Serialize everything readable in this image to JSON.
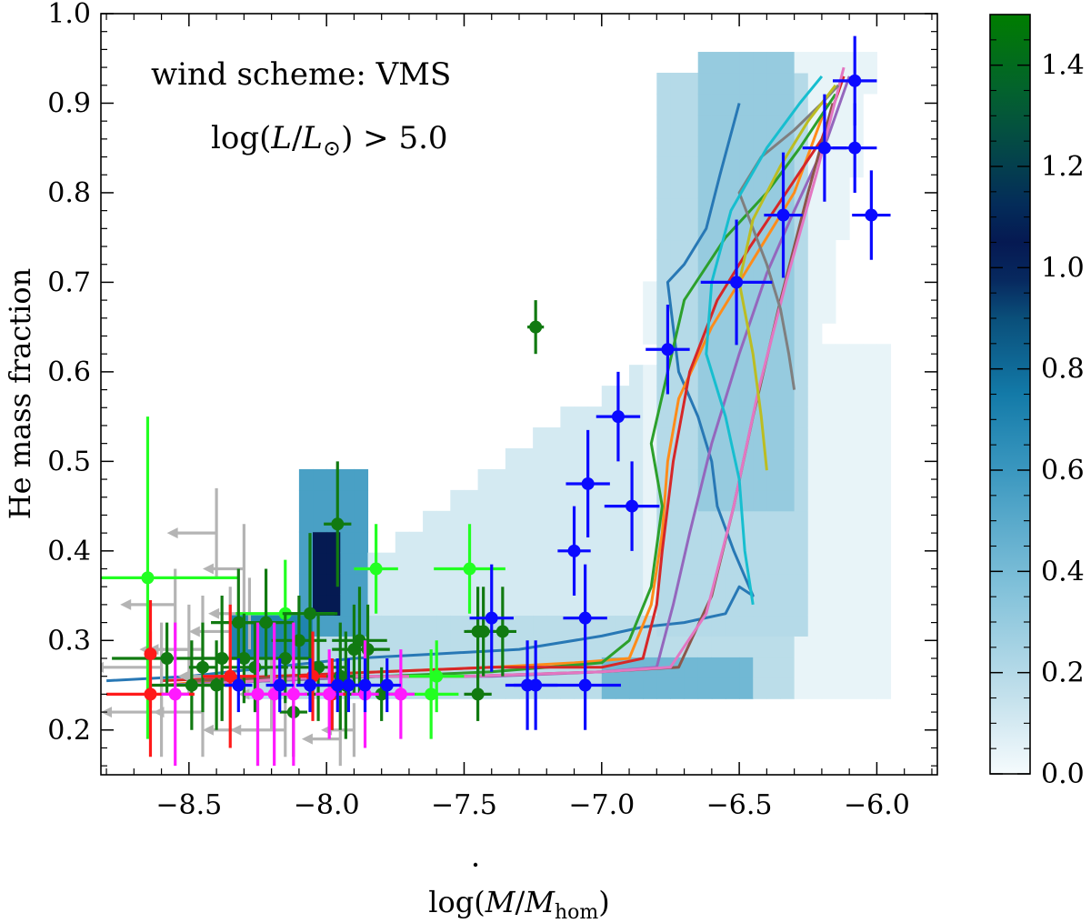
{
  "chart_data": {
    "type": "scatter",
    "title": "",
    "xlabel_parts": {
      "prefix": "log(",
      "mdot": "M",
      "slash": "/",
      "m": "M",
      "sub": "hom",
      "suffix": ")"
    },
    "ylabel": "He mass fraction",
    "xlim": [
      -8.82,
      -5.78
    ],
    "ylim": [
      0.15,
      1.0
    ],
    "x_ticks": [
      -8.5,
      -8.0,
      -7.5,
      -7.0,
      -6.5,
      -6.0
    ],
    "x_tick_labels": [
      "−8.5",
      "−8.0",
      "−7.5",
      "−7.0",
      "−6.5",
      "−6.0"
    ],
    "y_ticks": [
      0.2,
      0.3,
      0.4,
      0.5,
      0.6,
      0.7,
      0.8,
      0.9,
      1.0
    ],
    "y_tick_labels": [
      "0.2",
      "0.3",
      "0.4",
      "0.5",
      "0.6",
      "0.7",
      "0.8",
      "0.9",
      "1.0"
    ],
    "annotations": {
      "wind_scheme": "wind scheme: VMS",
      "lum_prefix": "log(",
      "lum_L": "L",
      "lum_slash": "/",
      "lum_Lsun": "L",
      "lum_sun_sub": "⊙",
      "lum_suffix": ") > 5.0"
    },
    "colorbar": {
      "range": [
        0.0,
        1.5
      ],
      "ticks": [
        0.0,
        0.2,
        0.4,
        0.6,
        0.8,
        1.0,
        1.2,
        1.4
      ],
      "tick_labels": [
        "0.0",
        "0.2",
        "0.4",
        "0.6",
        "0.8",
        "1.0",
        "1.2",
        "1.4"
      ],
      "colors": [
        "#f5fbfd",
        "#c4e1ec",
        "#7fc0d9",
        "#3a97bf",
        "#137aa8",
        "#0a4f7a",
        "#05124f",
        "#04305a",
        "#045c36",
        "#007d00"
      ]
    },
    "heatmap": {
      "x_edges_start": -8.4,
      "y_edges_start": 0.235,
      "dx": 0.05,
      "dy": 0.0233,
      "regions": [
        {
          "x": [
            -8.3,
            -5.95
          ],
          "y": [
            0.235,
            0.96
          ],
          "density": 0.04
        },
        {
          "x": [
            -8.2,
            -6.85
          ],
          "y": [
            0.24,
            0.62
          ],
          "density": 0.1
        },
        {
          "x": [
            -8.3,
            -6.3
          ],
          "y": [
            0.24,
            0.33
          ],
          "density": 0.18
        },
        {
          "x": [
            -6.8,
            -6.25
          ],
          "y": [
            0.3,
            0.94
          ],
          "density": 0.2
        },
        {
          "x": [
            -6.65,
            -6.3
          ],
          "y": [
            0.45,
            0.95
          ],
          "density": 0.3
        },
        {
          "x": [
            -8.1,
            -7.85
          ],
          "y": [
            0.3,
            0.48
          ],
          "density": 0.55
        },
        {
          "x": [
            -8.05,
            -7.95
          ],
          "y": [
            0.33,
            0.41
          ],
          "density": 1.05
        },
        {
          "x": [
            -7.0,
            -6.45
          ],
          "y": [
            0.24,
            0.29
          ],
          "density": 0.42
        },
        {
          "x": [
            -8.35,
            -8.05
          ],
          "y": [
            0.27,
            0.32
          ],
          "density": 0.7
        }
      ]
    },
    "series": [
      {
        "name": "gray upper limits",
        "color": "#b4b4b4",
        "points": [
          [
            -8.4,
            0.42
          ],
          [
            -8.55,
            0.34
          ],
          [
            -8.3,
            0.38
          ],
          [
            -8.45,
            0.29
          ],
          [
            -8.6,
            0.27
          ],
          [
            -8.35,
            0.31
          ],
          [
            -8.2,
            0.24
          ],
          [
            -8.25,
            0.2
          ],
          [
            -7.9,
            0.2
          ],
          [
            -7.95,
            0.19
          ],
          [
            -8.45,
            0.22
          ],
          [
            -8.6,
            0.22
          ],
          [
            -8.38,
            0.26
          ],
          [
            -8.15,
            0.2
          ],
          [
            -8.28,
            0.33
          ],
          [
            -8.5,
            0.29
          ]
        ],
        "yerr": [
          0.05,
          0.04,
          0.05,
          0.06,
          0.05,
          0.05,
          0.04,
          0.04,
          0.03,
          0.03,
          0.05,
          0.05,
          0.05,
          0.03,
          0.04,
          0.05
        ],
        "arrow_dx": [
          -0.18,
          -0.2,
          -0.15,
          -0.2,
          -0.25,
          -0.15,
          -0.12,
          -0.2,
          -0.12,
          -0.14,
          -0.18,
          -0.22,
          -0.16,
          -0.2,
          -0.15,
          -0.18
        ]
      },
      {
        "name": "bright green",
        "color": "#22ff22",
        "points": [
          [
            -8.65,
            0.37
          ],
          [
            -8.15,
            0.33
          ],
          [
            -7.82,
            0.38
          ],
          [
            -7.48,
            0.38
          ],
          [
            -7.62,
            0.24
          ],
          [
            -7.6,
            0.26
          ]
        ],
        "xerr": [
          0.33,
          0.18,
          0.08,
          0.13,
          0.1,
          0.1
        ],
        "yerr": [
          0.18,
          0.06,
          0.05,
          0.05,
          0.05,
          0.04
        ]
      },
      {
        "name": "dark green",
        "color": "#117a11",
        "points": [
          [
            -8.58,
            0.28
          ],
          [
            -8.49,
            0.25
          ],
          [
            -8.38,
            0.28
          ],
          [
            -8.32,
            0.32
          ],
          [
            -8.26,
            0.27
          ],
          [
            -8.22,
            0.32
          ],
          [
            -8.15,
            0.28
          ],
          [
            -8.1,
            0.3
          ],
          [
            -8.06,
            0.33
          ],
          [
            -8.03,
            0.27
          ],
          [
            -7.98,
            0.24
          ],
          [
            -7.96,
            0.43
          ],
          [
            -7.93,
            0.25
          ],
          [
            -7.9,
            0.29
          ],
          [
            -7.88,
            0.3
          ],
          [
            -7.85,
            0.29
          ],
          [
            -7.8,
            0.24
          ],
          [
            -7.43,
            0.31
          ],
          [
            -7.45,
            0.31
          ],
          [
            -7.36,
            0.31
          ],
          [
            -7.24,
            0.65
          ],
          [
            -7.45,
            0.24
          ],
          [
            -8.3,
            0.28
          ],
          [
            -8.12,
            0.22
          ],
          [
            -7.95,
            0.26
          ],
          [
            -8.4,
            0.25
          ],
          [
            -8.45,
            0.27
          ]
        ],
        "xerr": [
          0.2,
          0.15,
          0.1,
          0.1,
          0.12,
          0.1,
          0.1,
          0.1,
          0.1,
          0.1,
          0.1,
          0.05,
          0.1,
          0.08,
          0.1,
          0.08,
          0.05,
          0.06,
          0.05,
          0.05,
          0.03,
          0.05,
          0.05,
          0.05,
          0.05,
          0.05,
          0.05
        ],
        "yerr": [
          0.04,
          0.05,
          0.07,
          0.06,
          0.05,
          0.06,
          0.05,
          0.05,
          0.09,
          0.06,
          0.04,
          0.07,
          0.06,
          0.05,
          0.06,
          0.05,
          0.03,
          0.05,
          0.05,
          0.05,
          0.03,
          0.03,
          0.05,
          0.05,
          0.06,
          0.05,
          0.05
        ]
      },
      {
        "name": "red",
        "color": "#ff1a1a",
        "points": [
          [
            -8.64,
            0.24
          ],
          [
            -8.64,
            0.285
          ],
          [
            -8.35,
            0.26
          ],
          [
            -8.05,
            0.26
          ],
          [
            -7.98,
            0.24
          ]
        ],
        "xerr": [
          0.16,
          0.0,
          0.1,
          0.05,
          0.05
        ],
        "yerr": [
          0.07,
          0.06,
          0.08,
          0.05,
          0.04
        ]
      },
      {
        "name": "magenta",
        "color": "#ff1aff",
        "points": [
          [
            -8.55,
            0.24
          ],
          [
            -8.25,
            0.24
          ],
          [
            -8.19,
            0.24
          ],
          [
            -8.12,
            0.24
          ],
          [
            -7.99,
            0.24
          ],
          [
            -7.86,
            0.24
          ],
          [
            -7.73,
            0.24
          ]
        ],
        "xerr": [
          0.05,
          0.05,
          0.05,
          0.05,
          0.05,
          0.05,
          0.05
        ],
        "yerr": [
          0.08,
          0.08,
          0.08,
          0.08,
          0.05,
          0.06,
          0.05
        ]
      },
      {
        "name": "blue",
        "color": "#0a0aff",
        "points": [
          [
            -6.08,
            0.925
          ],
          [
            -6.19,
            0.85
          ],
          [
            -6.08,
            0.85
          ],
          [
            -6.34,
            0.775
          ],
          [
            -6.02,
            0.775
          ],
          [
            -6.51,
            0.7
          ],
          [
            -6.76,
            0.625
          ],
          [
            -6.94,
            0.55
          ],
          [
            -7.05,
            0.475
          ],
          [
            -6.89,
            0.45
          ],
          [
            -7.1,
            0.4
          ],
          [
            -7.06,
            0.325
          ],
          [
            -7.4,
            0.325
          ],
          [
            -7.24,
            0.25
          ],
          [
            -7.27,
            0.25
          ],
          [
            -7.06,
            0.25
          ],
          [
            -8.32,
            0.25
          ],
          [
            -8.17,
            0.25
          ],
          [
            -8.06,
            0.25
          ],
          [
            -7.92,
            0.25
          ],
          [
            -7.86,
            0.25
          ],
          [
            -7.78,
            0.25
          ],
          [
            -7.96,
            0.25
          ]
        ],
        "xerr": [
          0.08,
          0.08,
          0.08,
          0.07,
          0.07,
          0.13,
          0.08,
          0.08,
          0.08,
          0.1,
          0.06,
          0.08,
          0.08,
          0.08,
          0.08,
          0.13,
          0.05,
          0.05,
          0.05,
          0.05,
          0.05,
          0.05,
          0.05
        ],
        "yerr": [
          0.05,
          0.06,
          0.05,
          0.07,
          0.05,
          0.07,
          0.05,
          0.05,
          0.06,
          0.05,
          0.05,
          0.06,
          0.06,
          0.05,
          0.05,
          0.05,
          0.03,
          0.03,
          0.03,
          0.03,
          0.03,
          0.03,
          0.03
        ]
      }
    ],
    "tracks": [
      {
        "color": "#2878b5",
        "x": [
          -8.8,
          -8.5,
          -8.2,
          -7.9,
          -7.6,
          -7.3,
          -7.0,
          -6.85,
          -6.7,
          -6.55,
          -6.5,
          -6.45,
          -6.52,
          -6.58,
          -6.6,
          -6.65,
          -6.72,
          -6.76,
          -6.7,
          -6.62,
          -6.57,
          -6.5
        ],
        "y": [
          0.255,
          0.26,
          0.27,
          0.28,
          0.285,
          0.29,
          0.305,
          0.315,
          0.32,
          0.33,
          0.36,
          0.35,
          0.4,
          0.45,
          0.5,
          0.55,
          0.6,
          0.7,
          0.72,
          0.76,
          0.82,
          0.9
        ]
      },
      {
        "color": "#ff8c1a",
        "x": [
          -8.6,
          -8.2,
          -7.8,
          -7.4,
          -7.1,
          -6.9,
          -6.82,
          -6.78,
          -6.76,
          -6.72,
          -6.6,
          -6.5,
          -6.4,
          -6.3,
          -6.18
        ],
        "y": [
          0.25,
          0.26,
          0.265,
          0.27,
          0.275,
          0.28,
          0.34,
          0.42,
          0.5,
          0.57,
          0.65,
          0.7,
          0.75,
          0.8,
          0.9
        ]
      },
      {
        "color": "#2ca02c",
        "x": [
          -8.6,
          -8.2,
          -7.8,
          -7.4,
          -7.0,
          -6.9,
          -6.82,
          -6.78,
          -6.82,
          -6.76,
          -6.7,
          -6.55,
          -6.4,
          -6.28,
          -6.15
        ],
        "y": [
          0.25,
          0.255,
          0.26,
          0.265,
          0.275,
          0.3,
          0.36,
          0.45,
          0.52,
          0.6,
          0.68,
          0.75,
          0.8,
          0.85,
          0.91
        ]
      },
      {
        "color": "#d62728",
        "x": [
          -8.6,
          -8.2,
          -7.8,
          -7.4,
          -7.0,
          -6.85,
          -6.8,
          -6.78,
          -6.74,
          -6.68,
          -6.58,
          -6.46,
          -6.33,
          -6.2,
          -6.12
        ],
        "y": [
          0.255,
          0.26,
          0.265,
          0.27,
          0.27,
          0.28,
          0.34,
          0.4,
          0.5,
          0.6,
          0.68,
          0.74,
          0.8,
          0.86,
          0.93
        ]
      },
      {
        "color": "#9467bd",
        "x": [
          -8.6,
          -8.2,
          -7.8,
          -7.4,
          -7.0,
          -6.8,
          -6.74,
          -6.68,
          -6.6,
          -6.5,
          -6.4,
          -6.3,
          -6.18,
          -6.1
        ],
        "y": [
          0.25,
          0.255,
          0.26,
          0.26,
          0.265,
          0.27,
          0.34,
          0.42,
          0.52,
          0.62,
          0.71,
          0.78,
          0.86,
          0.93
        ]
      },
      {
        "color": "#8c564b",
        "x": [
          -8.5,
          -8.0,
          -7.5,
          -7.0,
          -6.72,
          -6.6,
          -6.52,
          -6.45,
          -6.35,
          -6.25,
          -6.16
        ],
        "y": [
          0.255,
          0.26,
          0.26,
          0.265,
          0.27,
          0.35,
          0.45,
          0.55,
          0.68,
          0.8,
          0.9
        ]
      },
      {
        "color": "#e377c2",
        "x": [
          -8.5,
          -8.0,
          -7.5,
          -7.0,
          -6.75,
          -6.62,
          -6.52,
          -6.43,
          -6.33,
          -6.22,
          -6.12
        ],
        "y": [
          0.25,
          0.26,
          0.26,
          0.265,
          0.27,
          0.33,
          0.45,
          0.58,
          0.7,
          0.82,
          0.94
        ]
      },
      {
        "color": "#7f7f7f",
        "x": [
          -6.3,
          -6.32,
          -6.35,
          -6.4,
          -6.45,
          -6.5,
          -6.42,
          -6.3,
          -6.2,
          -6.14
        ],
        "y": [
          0.58,
          0.62,
          0.67,
          0.72,
          0.76,
          0.8,
          0.84,
          0.87,
          0.9,
          0.92
        ]
      },
      {
        "color": "#bcbd22",
        "x": [
          -6.4,
          -6.42,
          -6.45,
          -6.5,
          -6.45,
          -6.35,
          -6.25,
          -6.15
        ],
        "y": [
          0.49,
          0.55,
          0.62,
          0.7,
          0.77,
          0.83,
          0.88,
          0.92
        ]
      },
      {
        "color": "#17becf",
        "x": [
          -6.45,
          -6.48,
          -6.5,
          -6.55,
          -6.62,
          -6.6,
          -6.53,
          -6.4,
          -6.28,
          -6.2
        ],
        "y": [
          0.34,
          0.4,
          0.48,
          0.55,
          0.62,
          0.7,
          0.78,
          0.85,
          0.9,
          0.93
        ]
      }
    ]
  }
}
